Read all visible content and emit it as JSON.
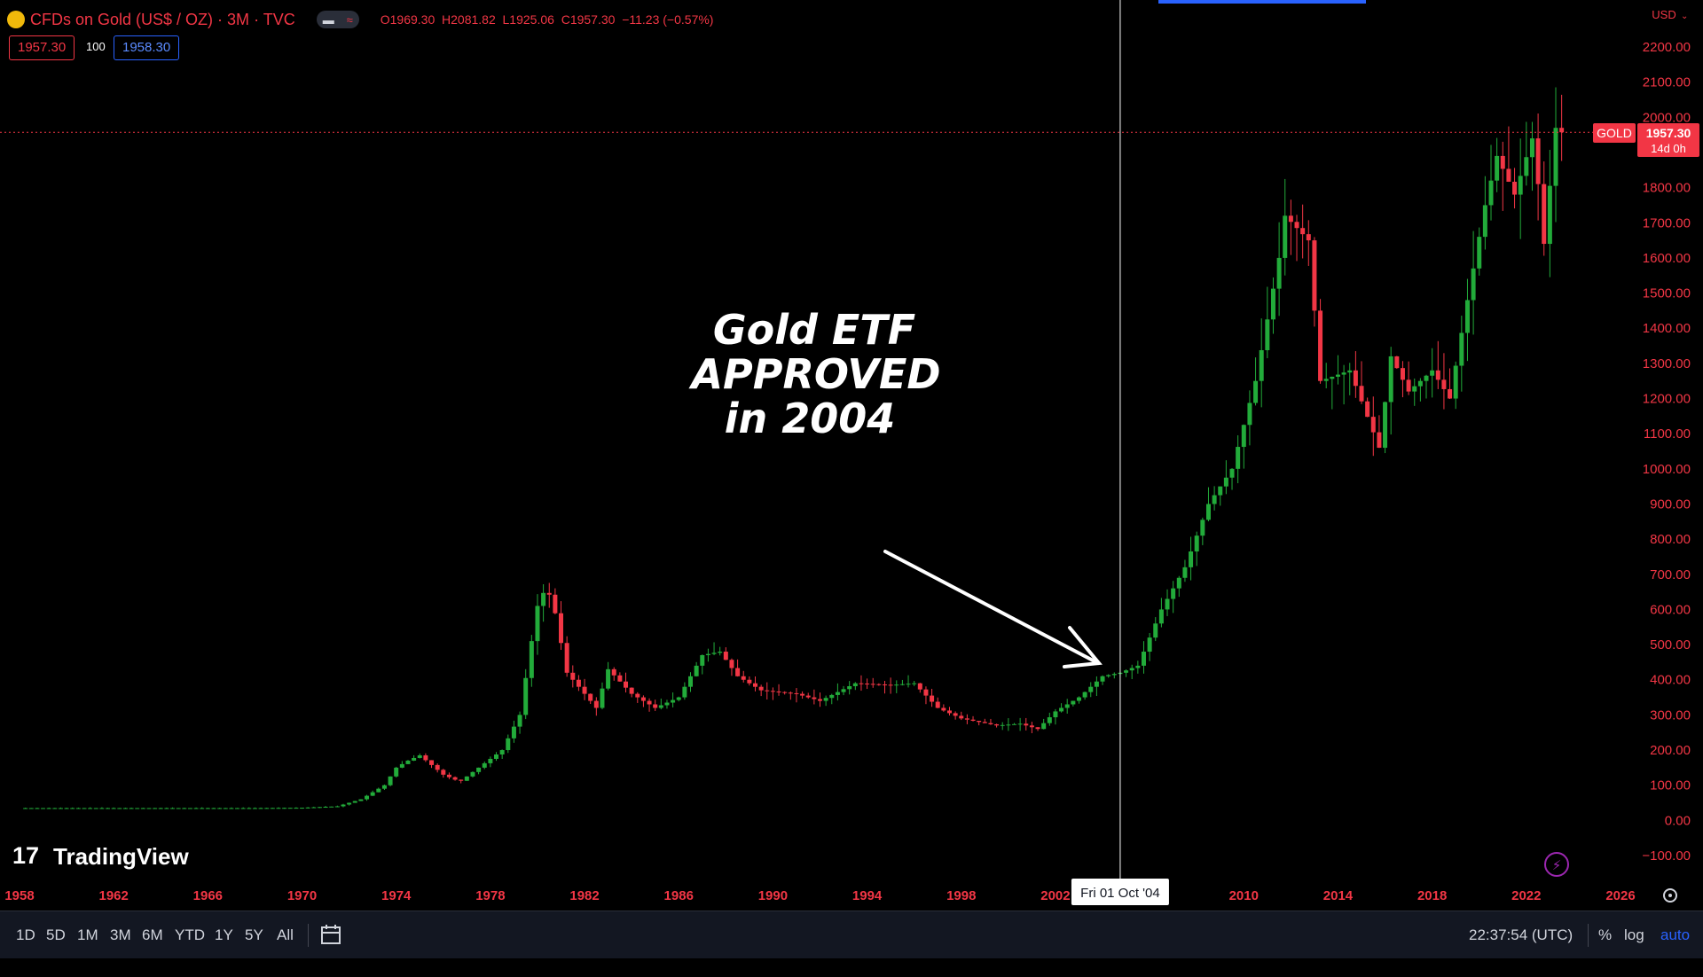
{
  "header": {
    "symbol": "CFDs on Gold (US$ / OZ)",
    "interval": "3M",
    "exchange": "TVC",
    "ohlc": {
      "o": "O1969.30",
      "h": "H2081.82",
      "l": "L1925.06",
      "c": "C1957.30",
      "chg": "−11.23 (−0.57%)"
    },
    "bid": "1957.30",
    "spread": "100",
    "ask": "1958.30"
  },
  "currency_label": "USD",
  "last_price": {
    "symbol": "GOLD",
    "price": "1957.30",
    "countdown": "14d 0h"
  },
  "annotation": {
    "line1": "Gold ETF",
    "line2": "APPROVED",
    "line3": "in 2004"
  },
  "crosshair": {
    "label": "Fri 01 Oct '04",
    "year": 2004.75
  },
  "watermark": "TradingView",
  "toolbar": {
    "ranges": [
      "1D",
      "5D",
      "1M",
      "3M",
      "6M",
      "YTD",
      "1Y",
      "5Y",
      "All"
    ],
    "clock": "22:37:54 (UTC)",
    "percent": "%",
    "log": "log",
    "auto": "auto"
  },
  "colors": {
    "up": "#22ab3a",
    "down": "#f23645",
    "background": "#000000",
    "axis_text": "#f23645"
  },
  "chart_data": {
    "type": "candlestick",
    "interval": "3M",
    "y_axis_ticks": [
      "2200.00",
      "2100.00",
      "2000.00",
      "1900.00",
      "1800.00",
      "1700.00",
      "1600.00",
      "1500.00",
      "1400.00",
      "1300.00",
      "1200.00",
      "1100.00",
      "1000.00",
      "900.00",
      "800.00",
      "700.00",
      "600.00",
      "500.00",
      "400.00",
      "300.00",
      "200.00",
      "100.00",
      "0.00",
      "−100.00"
    ],
    "x_axis_ticks": [
      "1958",
      "1962",
      "1966",
      "1970",
      "1974",
      "1978",
      "1982",
      "1986",
      "1990",
      "1994",
      "1998",
      "2002",
      "2010",
      "2014",
      "2018",
      "2022",
      "2026"
    ],
    "ylim": [
      -100,
      2200
    ],
    "xlim": [
      1958,
      2026
    ],
    "series_close": [
      [
        1958,
        35
      ],
      [
        1968,
        35
      ],
      [
        1970,
        36
      ],
      [
        1971.5,
        40
      ],
      [
        1972.5,
        60
      ],
      [
        1973.5,
        100
      ],
      [
        1974,
        150
      ],
      [
        1974.5,
        170
      ],
      [
        1975,
        185
      ],
      [
        1976,
        130
      ],
      [
        1976.7,
        110
      ],
      [
        1977.5,
        150
      ],
      [
        1978.5,
        200
      ],
      [
        1979.25,
        300
      ],
      [
        1979.75,
        510
      ],
      [
        1980.1,
        650
      ],
      [
        1980.6,
        640
      ],
      [
        1981.25,
        420
      ],
      [
        1982.5,
        320
      ],
      [
        1983,
        430
      ],
      [
        1984,
        360
      ],
      [
        1985,
        320
      ],
      [
        1986,
        350
      ],
      [
        1987,
        470
      ],
      [
        1987.75,
        480
      ],
      [
        1988.5,
        410
      ],
      [
        1989.5,
        370
      ],
      [
        1991,
        360
      ],
      [
        1992,
        340
      ],
      [
        1993.5,
        390
      ],
      [
        1995,
        385
      ],
      [
        1996,
        390
      ],
      [
        1997,
        320
      ],
      [
        1998,
        290
      ],
      [
        1999.5,
        270
      ],
      [
        2000.5,
        275
      ],
      [
        2001.25,
        260
      ],
      [
        2002,
        310
      ],
      [
        2003,
        350
      ],
      [
        2004,
        410
      ],
      [
        2004.75,
        420
      ],
      [
        2005.5,
        440
      ],
      [
        2006.5,
        600
      ],
      [
        2007.5,
        720
      ],
      [
        2008.5,
        900
      ],
      [
        2009.5,
        1000
      ],
      [
        2010.5,
        1250
      ],
      [
        2011.5,
        1600
      ],
      [
        2011.75,
        1720
      ],
      [
        2012.75,
        1650
      ],
      [
        2013.25,
        1250
      ],
      [
        2014.5,
        1280
      ],
      [
        2015.75,
        1060
      ],
      [
        2016.25,
        1320
      ],
      [
        2017,
        1220
      ],
      [
        2018,
        1280
      ],
      [
        2018.75,
        1200
      ],
      [
        2019.5,
        1480
      ],
      [
        2020.25,
        1750
      ],
      [
        2020.75,
        1890
      ],
      [
        2021.5,
        1780
      ],
      [
        2022.25,
        1940
      ],
      [
        2022.5,
        1810
      ],
      [
        2022.75,
        1640
      ],
      [
        2023.25,
        1970
      ],
      [
        2023.5,
        1957.3
      ]
    ]
  }
}
